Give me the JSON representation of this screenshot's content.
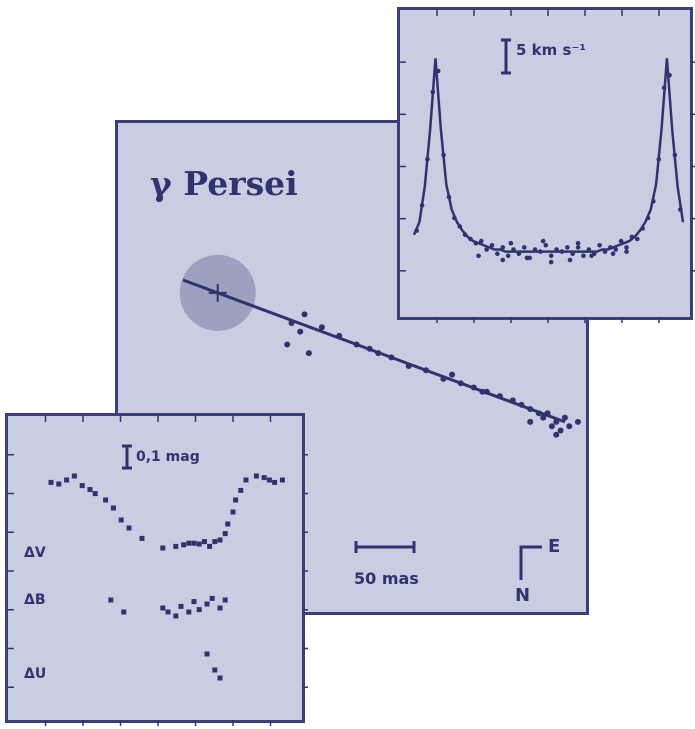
{
  "colors": {
    "ink": "#2f346e",
    "panel": "#c8cde1",
    "disk": "#8e91b3"
  },
  "chart_data": [
    {
      "type": "scatter",
      "panel": "orbit",
      "title": "γ Persei",
      "scale_label": "50 mas",
      "compass": {
        "east": "E",
        "north": "N"
      },
      "fit_line": {
        "x": [
          0,
          88
        ],
        "y": [
          0,
          -33
        ]
      },
      "primary_marker": {
        "x": 8,
        "y": -3
      },
      "points": [
        {
          "x": 28,
          "y": -8
        },
        {
          "x": 25,
          "y": -10
        },
        {
          "x": 27,
          "y": -12
        },
        {
          "x": 32,
          "y": -11
        },
        {
          "x": 36,
          "y": -13
        },
        {
          "x": 24,
          "y": -15
        },
        {
          "x": 29,
          "y": -17
        },
        {
          "x": 40,
          "y": -15
        },
        {
          "x": 43,
          "y": -16
        },
        {
          "x": 48,
          "y": -18
        },
        {
          "x": 52,
          "y": -20
        },
        {
          "x": 56,
          "y": -21
        },
        {
          "x": 60,
          "y": -23
        },
        {
          "x": 62,
          "y": -22
        },
        {
          "x": 64,
          "y": -24
        },
        {
          "x": 67,
          "y": -25
        },
        {
          "x": 70,
          "y": -26
        },
        {
          "x": 73,
          "y": -27
        },
        {
          "x": 76,
          "y": -28
        },
        {
          "x": 78,
          "y": -29
        },
        {
          "x": 80,
          "y": -30
        },
        {
          "x": 82,
          "y": -31
        },
        {
          "x": 84,
          "y": -31
        },
        {
          "x": 86,
          "y": -33
        },
        {
          "x": 88,
          "y": -32
        },
        {
          "x": 85,
          "y": -34
        },
        {
          "x": 87,
          "y": -35
        },
        {
          "x": 83,
          "y": -32
        },
        {
          "x": 89,
          "y": -34
        },
        {
          "x": 91,
          "y": -33
        },
        {
          "x": 86,
          "y": -36
        },
        {
          "x": 45,
          "y": -17
        },
        {
          "x": 69,
          "y": -26
        },
        {
          "x": 80,
          "y": -33
        }
      ]
    },
    {
      "type": "line",
      "panel": "spectrum",
      "scale_label": "5 km s⁻¹",
      "model": {
        "x": [
          0,
          2,
          4,
          6,
          8,
          10,
          12,
          14,
          16,
          18,
          20,
          22,
          24,
          26,
          28,
          30,
          32,
          34,
          36,
          38,
          40,
          42,
          44,
          46,
          48,
          50,
          52,
          54,
          56,
          58,
          60,
          62,
          64,
          66,
          68,
          70,
          72,
          74,
          76,
          78,
          80,
          82,
          84,
          86,
          88,
          90,
          92,
          94,
          96,
          98,
          100
        ],
        "y": [
          0.12,
          0.18,
          0.35,
          0.62,
          0.96,
          0.62,
          0.36,
          0.24,
          0.18,
          0.14,
          0.11,
          0.09,
          0.08,
          0.07,
          0.06,
          0.05,
          0.05,
          0.04,
          0.04,
          0.04,
          0.04,
          0.04,
          0.04,
          0.04,
          0.04,
          0.04,
          0.04,
          0.04,
          0.04,
          0.04,
          0.04,
          0.04,
          0.04,
          0.04,
          0.04,
          0.05,
          0.05,
          0.06,
          0.07,
          0.08,
          0.09,
          0.11,
          0.14,
          0.18,
          0.24,
          0.36,
          0.62,
          0.96,
          0.62,
          0.35,
          0.18
        ]
      },
      "points": {
        "x": [
          1,
          3,
          5,
          7,
          9,
          11,
          13,
          15,
          17,
          19,
          21,
          23,
          25,
          27,
          29,
          31,
          33,
          35,
          37,
          39,
          41,
          43,
          45,
          47,
          49,
          51,
          53,
          55,
          57,
          59,
          61,
          63,
          65,
          67,
          69,
          71,
          73,
          75,
          77,
          79,
          81,
          83,
          85,
          87,
          89,
          91,
          93,
          95,
          97,
          99,
          24,
          33,
          42,
          51,
          58,
          66,
          74,
          79,
          36,
          48,
          61
        ],
        "y": [
          0.14,
          0.26,
          0.48,
          0.8,
          0.9,
          0.5,
          0.3,
          0.2,
          0.16,
          0.12,
          0.1,
          0.08,
          0.09,
          0.05,
          0.07,
          0.03,
          0.06,
          0.02,
          0.05,
          0.03,
          0.06,
          0.01,
          0.05,
          0.04,
          0.07,
          0.02,
          0.05,
          0.04,
          0.06,
          0.03,
          0.06,
          0.02,
          0.05,
          0.03,
          0.07,
          0.04,
          0.06,
          0.05,
          0.09,
          0.06,
          0.11,
          0.1,
          0.15,
          0.2,
          0.28,
          0.48,
          0.82,
          0.88,
          0.5,
          0.24,
          0.02,
          0.0,
          0.01,
          -0.01,
          0.0,
          0.02,
          0.03,
          0.04,
          0.08,
          0.09,
          0.08
        ]
      }
    },
    {
      "type": "scatter",
      "panel": "photometry",
      "scale_label": "0,1 mag",
      "series": [
        {
          "name": "ΔV",
          "x": [
            5,
            8,
            11,
            14,
            17,
            20,
            22,
            26,
            29,
            32,
            35,
            40,
            48,
            53,
            56,
            58,
            60,
            62,
            64,
            66,
            68,
            70,
            72,
            73,
            75,
            76,
            78,
            80,
            84,
            87,
            89,
            91,
            94
          ],
          "y": [
            0.92,
            0.9,
            0.95,
            1.0,
            0.88,
            0.83,
            0.78,
            0.7,
            0.6,
            0.45,
            0.35,
            0.22,
            0.1,
            0.12,
            0.14,
            0.16,
            0.16,
            0.15,
            0.18,
            0.12,
            0.18,
            0.2,
            0.28,
            0.4,
            0.55,
            0.7,
            0.82,
            0.95,
            1.0,
            0.98,
            0.95,
            0.92,
            0.95
          ]
        },
        {
          "name": "ΔB",
          "x": [
            28,
            33,
            48,
            50,
            53,
            55,
            58,
            60,
            62,
            65,
            67,
            70,
            72
          ],
          "y": [
            0.2,
            0.05,
            0.1,
            0.05,
            0.0,
            0.12,
            0.05,
            0.18,
            0.08,
            0.15,
            0.22,
            0.1,
            0.2
          ]
        },
        {
          "name": "ΔU",
          "x": [
            65,
            68,
            70
          ],
          "y": [
            0.3,
            0.1,
            0.0
          ]
        }
      ]
    }
  ]
}
